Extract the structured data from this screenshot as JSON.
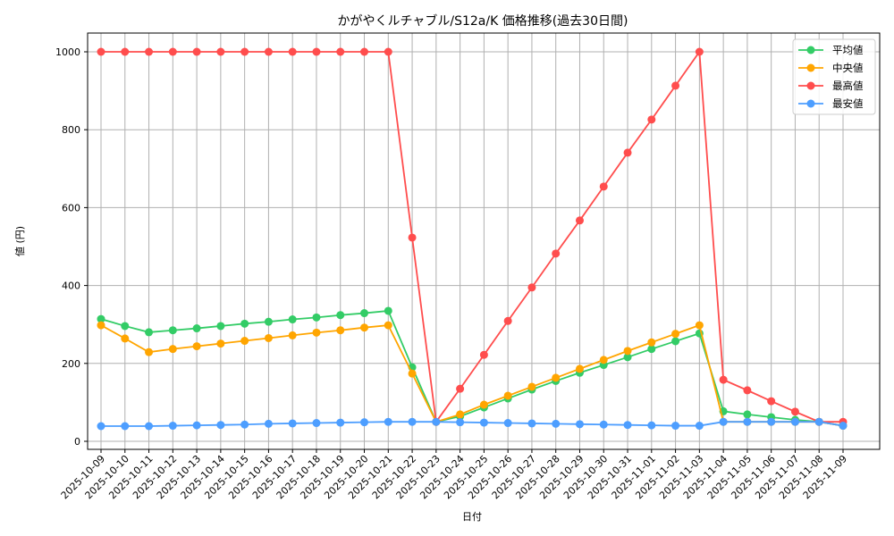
{
  "chart_data": {
    "type": "line",
    "title": "かがやくルチャブル/S12a/K 価格推移(過去30日間)",
    "xlabel": "日付",
    "ylabel": "値 (円)",
    "ylim": [
      0,
      1000
    ],
    "yticks": [
      0,
      200,
      400,
      600,
      800,
      1000
    ],
    "grid": true,
    "legend_position": "upper right",
    "categories": [
      "2025-10-09",
      "2025-10-10",
      "2025-10-11",
      "2025-10-12",
      "2025-10-13",
      "2025-10-14",
      "2025-10-15",
      "2025-10-16",
      "2025-10-17",
      "2025-10-18",
      "2025-10-19",
      "2025-10-20",
      "2025-10-21",
      "2025-10-22",
      "2025-10-23",
      "2025-10-24",
      "2025-10-25",
      "2025-10-26",
      "2025-10-27",
      "2025-10-28",
      "2025-10-29",
      "2025-10-30",
      "2025-10-31",
      "2025-11-01",
      "2025-11-02",
      "2025-11-03",
      "2025-11-04",
      "2025-11-05",
      "2025-11-06",
      "2025-11-07",
      "2025-11-08",
      "2025-11-09"
    ],
    "series": [
      {
        "name": "平均値",
        "color": "#33cc66",
        "values": [
          314,
          296,
          280,
          285,
          290,
          296,
          302,
          307,
          313,
          318,
          324,
          329,
          335,
          190,
          50,
          64,
          87,
          110,
          133,
          155,
          176,
          196,
          216,
          237,
          257,
          277,
          77,
          69,
          62,
          55,
          50,
          40
        ]
      },
      {
        "name": "中央値",
        "color": "#ffa500",
        "values": [
          298,
          264,
          229,
          237,
          244,
          251,
          258,
          265,
          272,
          279,
          285,
          292,
          298,
          174,
          50,
          69,
          94,
          117,
          140,
          163,
          186,
          209,
          232,
          254,
          276,
          298,
          50,
          50,
          50,
          50,
          50,
          40
        ]
      },
      {
        "name": "最高値",
        "color": "#ff4d4d",
        "values": [
          1000,
          1000,
          1000,
          1000,
          1000,
          1000,
          1000,
          1000,
          1000,
          1000,
          1000,
          1000,
          1000,
          523,
          50,
          135,
          222,
          309,
          395,
          482,
          567,
          654,
          741,
          826,
          913,
          1000,
          158,
          131,
          103,
          76,
          50,
          50
        ]
      },
      {
        "name": "最安値",
        "color": "#4d9eff",
        "values": [
          39,
          39,
          39,
          40,
          41,
          42,
          43,
          45,
          46,
          47,
          48,
          49,
          50,
          50,
          50,
          49,
          48,
          47,
          46,
          45,
          44,
          43,
          42,
          41,
          40,
          40,
          50,
          50,
          50,
          50,
          50,
          40
        ]
      }
    ]
  }
}
